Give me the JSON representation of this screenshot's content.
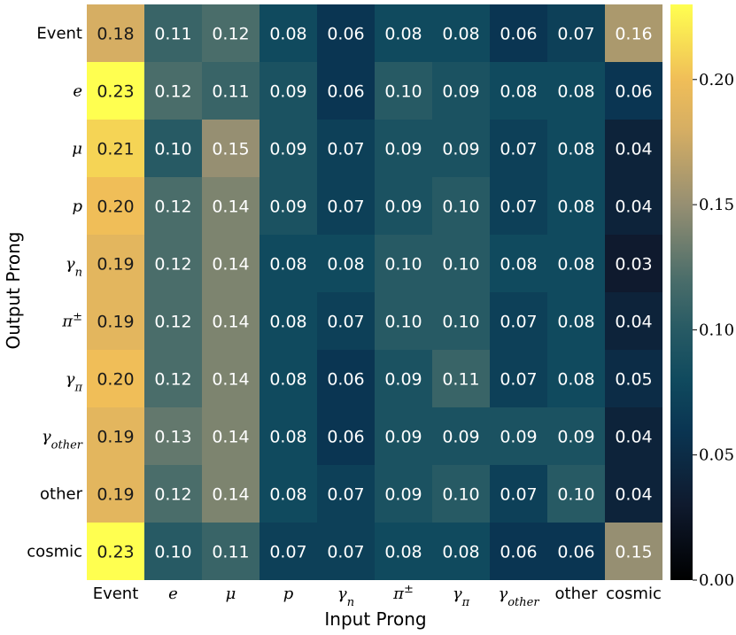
{
  "chart_data": {
    "type": "heatmap",
    "xlabel": "Input Prong",
    "ylabel": "Output Prong",
    "x_categories": [
      {
        "base": "Event",
        "sub": "",
        "sup": "",
        "math": false
      },
      {
        "base": "e",
        "sub": "",
        "sup": "",
        "math": true
      },
      {
        "base": "μ",
        "sub": "",
        "sup": "",
        "math": true
      },
      {
        "base": "p",
        "sub": "",
        "sup": "",
        "math": true
      },
      {
        "base": "γ",
        "sub": "n",
        "sup": "",
        "math": true
      },
      {
        "base": "π",
        "sub": "",
        "sup": "±",
        "math": true
      },
      {
        "base": "γ",
        "sub": "π",
        "sup": "",
        "math": true
      },
      {
        "base": "γ",
        "sub": "other",
        "sup": "",
        "math": true
      },
      {
        "base": "other",
        "sub": "",
        "sup": "",
        "math": false
      },
      {
        "base": "cosmic",
        "sub": "",
        "sup": "",
        "math": false
      }
    ],
    "y_categories": [
      {
        "base": "Event",
        "sub": "",
        "sup": "",
        "math": false
      },
      {
        "base": "e",
        "sub": "",
        "sup": "",
        "math": true
      },
      {
        "base": "μ",
        "sub": "",
        "sup": "",
        "math": true
      },
      {
        "base": "p",
        "sub": "",
        "sup": "",
        "math": true
      },
      {
        "base": "γ",
        "sub": "n",
        "sup": "",
        "math": true
      },
      {
        "base": "π",
        "sub": "",
        "sup": "±",
        "math": true
      },
      {
        "base": "γ",
        "sub": "π",
        "sup": "",
        "math": true
      },
      {
        "base": "γ",
        "sub": "other",
        "sup": "",
        "math": true
      },
      {
        "base": "other",
        "sub": "",
        "sup": "",
        "math": false
      },
      {
        "base": "cosmic",
        "sub": "",
        "sup": "",
        "math": false
      }
    ],
    "values": [
      [
        0.18,
        0.11,
        0.12,
        0.08,
        0.06,
        0.08,
        0.08,
        0.06,
        0.07,
        0.16
      ],
      [
        0.23,
        0.12,
        0.11,
        0.09,
        0.06,
        0.1,
        0.09,
        0.08,
        0.08,
        0.06
      ],
      [
        0.21,
        0.1,
        0.15,
        0.09,
        0.07,
        0.09,
        0.09,
        0.07,
        0.08,
        0.04
      ],
      [
        0.2,
        0.12,
        0.14,
        0.09,
        0.07,
        0.09,
        0.1,
        0.07,
        0.08,
        0.04
      ],
      [
        0.19,
        0.12,
        0.14,
        0.08,
        0.08,
        0.1,
        0.1,
        0.08,
        0.08,
        0.03
      ],
      [
        0.19,
        0.12,
        0.14,
        0.08,
        0.07,
        0.1,
        0.1,
        0.07,
        0.08,
        0.04
      ],
      [
        0.2,
        0.12,
        0.14,
        0.08,
        0.06,
        0.09,
        0.11,
        0.07,
        0.08,
        0.05
      ],
      [
        0.19,
        0.13,
        0.14,
        0.08,
        0.06,
        0.09,
        0.09,
        0.09,
        0.09,
        0.04
      ],
      [
        0.19,
        0.12,
        0.14,
        0.08,
        0.07,
        0.09,
        0.1,
        0.07,
        0.1,
        0.04
      ],
      [
        0.23,
        0.1,
        0.11,
        0.07,
        0.07,
        0.08,
        0.08,
        0.06,
        0.06,
        0.15
      ]
    ],
    "colorbar": {
      "range": [
        0.0,
        0.23
      ],
      "ticks": [
        "0.00",
        "0.05",
        "0.10",
        "0.15",
        "0.20"
      ],
      "colormap": "cividis-like",
      "stops": [
        {
          "v": 0.0,
          "color": "#000000"
        },
        {
          "v": 0.03,
          "color": "#0f1a2e"
        },
        {
          "v": 0.06,
          "color": "#0a3552"
        },
        {
          "v": 0.08,
          "color": "#104a5e"
        },
        {
          "v": 0.1,
          "color": "#275a64"
        },
        {
          "v": 0.12,
          "color": "#4a6d6a"
        },
        {
          "v": 0.15,
          "color": "#968f72"
        },
        {
          "v": 0.18,
          "color": "#d6ae63"
        },
        {
          "v": 0.2,
          "color": "#f0be58"
        },
        {
          "v": 0.23,
          "color": "#ffff50"
        }
      ]
    },
    "grid": false
  }
}
